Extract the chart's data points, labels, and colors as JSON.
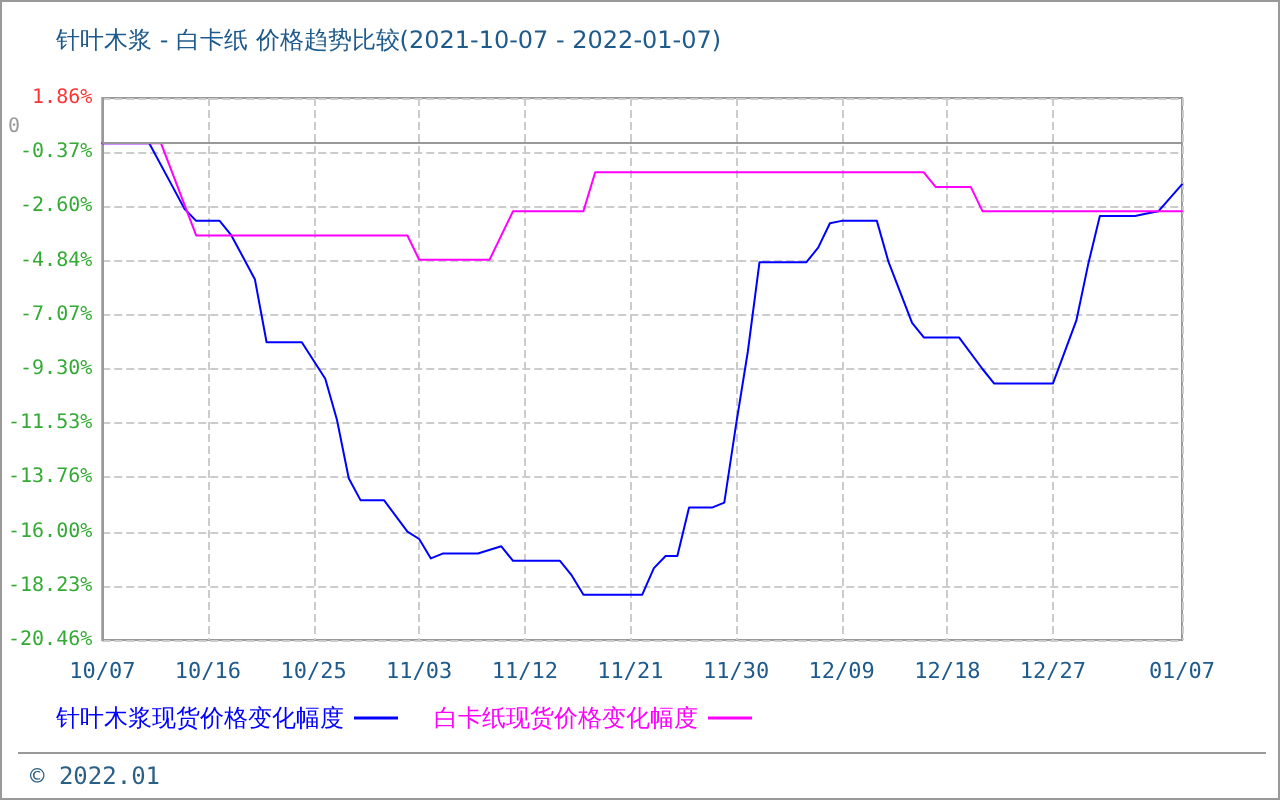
{
  "chart_data": {
    "type": "line",
    "title": "针叶木浆 - 白卡纸 价格趋势比较(2021-10-07 - 2022-01-07)",
    "annotations": [
      "© 2022.01"
    ],
    "series": [
      {
        "name": "针叶木浆现货价格变化幅度",
        "color": "#0000ff",
        "x": [
          "2021-10-07",
          "2021-10-11",
          "2021-10-13",
          "2021-10-14",
          "2021-10-15",
          "2021-10-17",
          "2021-10-18",
          "2021-10-20",
          "2021-10-21",
          "2021-10-24",
          "2021-10-26",
          "2021-10-27",
          "2021-10-28",
          "2021-10-29",
          "2021-10-31",
          "2021-11-02",
          "2021-11-03",
          "2021-11-04",
          "2021-11-05",
          "2021-11-08",
          "2021-11-10",
          "2021-11-11",
          "2021-11-15",
          "2021-11-16",
          "2021-11-17",
          "2021-11-22",
          "2021-11-23",
          "2021-11-24",
          "2021-11-25",
          "2021-11-26",
          "2021-11-28",
          "2021-11-29",
          "2021-11-30",
          "2021-12-01",
          "2021-12-02",
          "2021-12-06",
          "2021-12-07",
          "2021-12-08",
          "2021-12-09",
          "2021-12-12",
          "2021-12-13",
          "2021-12-15",
          "2021-12-16",
          "2021-12-19",
          "2021-12-21",
          "2021-12-22",
          "2021-12-27",
          "2021-12-29",
          "2021-12-30",
          "2021-12-31",
          "2022-01-03",
          "2022-01-04",
          "2022-01-05",
          "2022-01-07"
        ],
        "values": [
          0,
          0,
          -1.8,
          -2.7,
          -3.2,
          -3.2,
          -3.8,
          -5.6,
          -8.2,
          -8.2,
          -9.7,
          -11.4,
          -13.8,
          -14.7,
          -14.7,
          -16,
          -16.3,
          -17.1,
          -16.9,
          -16.9,
          -16.6,
          -17.2,
          -17.2,
          -17.8,
          -18.6,
          -18.6,
          -17.5,
          -17,
          -17,
          -15,
          -15,
          -14.8,
          -11.6,
          -8.6,
          -4.9,
          -4.9,
          -4.3,
          -3.3,
          -3.2,
          -3.2,
          -4.9,
          -7.4,
          -8,
          -8,
          -9.3,
          -9.9,
          -9.9,
          -7.3,
          -5,
          -3,
          -3,
          -2.9,
          -2.8,
          -1.7
        ]
      },
      {
        "name": "白卡纸现货价格变化幅度",
        "color": "#ff00ff",
        "x": [
          "2021-10-07",
          "2021-10-12",
          "2021-10-15",
          "2021-11-02",
          "2021-11-03",
          "2021-11-09",
          "2021-11-11",
          "2021-11-17",
          "2021-11-18",
          "2021-12-16",
          "2021-12-17",
          "2021-12-20",
          "2021-12-21",
          "2022-01-07"
        ],
        "values": [
          0,
          0,
          -3.8,
          -3.8,
          -4.8,
          -4.8,
          -2.8,
          -2.8,
          -1.2,
          -1.2,
          -1.8,
          -1.8,
          -2.8,
          -2.8
        ]
      }
    ],
    "xlim": [
      "2021-10-07",
      "2022-01-07"
    ],
    "xticks": [
      {
        "value": "2021-10-07",
        "label": "10/07"
      },
      {
        "value": "2021-10-16",
        "label": "10/16"
      },
      {
        "value": "2021-10-25",
        "label": "10/25"
      },
      {
        "value": "2021-11-03",
        "label": "11/03"
      },
      {
        "value": "2021-11-12",
        "label": "11/12"
      },
      {
        "value": "2021-11-21",
        "label": "11/21"
      },
      {
        "value": "2021-11-30",
        "label": "11/30"
      },
      {
        "value": "2021-12-09",
        "label": "12/09"
      },
      {
        "value": "2021-12-18",
        "label": "12/18"
      },
      {
        "value": "2021-12-27",
        "label": "12/27"
      },
      {
        "value": "2022-01-07",
        "label": "01/07"
      }
    ],
    "ylim": [
      -20.46,
      1.86
    ],
    "yticks": [
      {
        "value": 1.86,
        "label": "1.86%"
      },
      {
        "value": -0.37,
        "label": "-0.37%"
      },
      {
        "value": -2.6,
        "label": "-2.60%"
      },
      {
        "value": -4.84,
        "label": "-4.84%"
      },
      {
        "value": -7.07,
        "label": "-7.07%"
      },
      {
        "value": -9.3,
        "label": "-9.30%"
      },
      {
        "value": -11.53,
        "label": "-11.53%"
      },
      {
        "value": -13.76,
        "label": "-13.76%"
      },
      {
        "value": -16,
        "label": "-16.00%"
      },
      {
        "value": -18.23,
        "label": "-18.23%"
      },
      {
        "value": -20.46,
        "label": "-20.46%"
      }
    ],
    "ref_lines": [
      {
        "axis": "y",
        "value": 0,
        "label": "0",
        "color": "#999999"
      }
    ],
    "grid": true,
    "legend": "bottom left",
    "marker": "none",
    "line_style": "solid"
  }
}
